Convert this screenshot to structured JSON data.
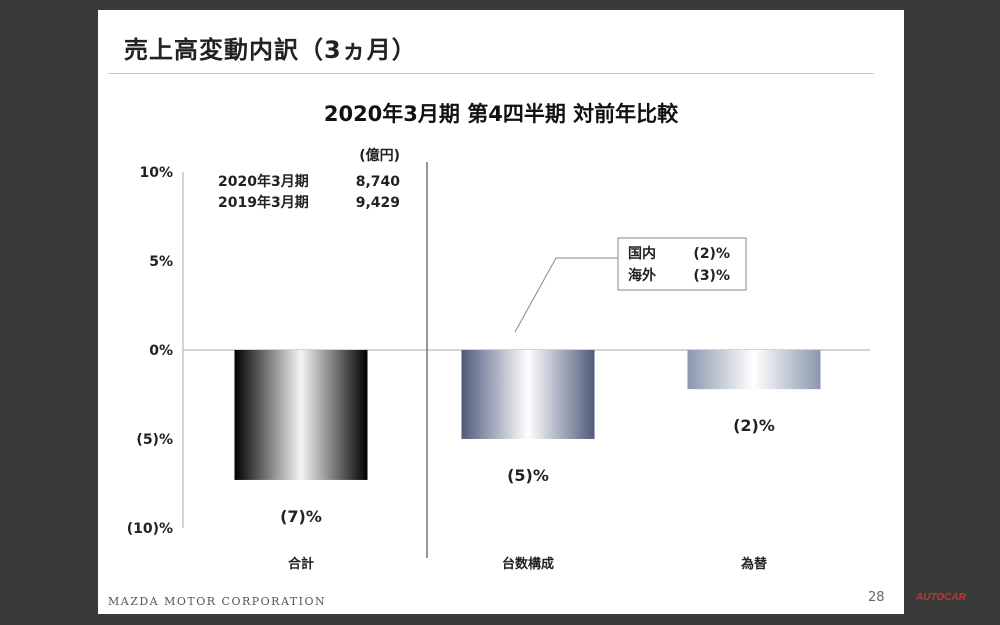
{
  "slide": {
    "title": "売上高変動内訳（3ヵ月）",
    "footer": "MAZDA MOTOR CORPORATION",
    "page_number": "28"
  },
  "watermark": "AUTOCAR",
  "info_box": {
    "unit": "(億円)",
    "rows": [
      {
        "label": "2020年3月期",
        "value": "8,740"
      },
      {
        "label": "2019年3月期",
        "value": "9,429"
      }
    ]
  },
  "callout": {
    "rows": [
      {
        "label": "国内",
        "value": "(2)%"
      },
      {
        "label": "海外",
        "value": "(3)%"
      }
    ]
  },
  "chart_data": {
    "type": "bar",
    "title": "2020年3月期 第4四半期 対前年比較",
    "categories": [
      "合計",
      "台数構成",
      "為替"
    ],
    "values": [
      -7.3,
      -5.0,
      -2.2
    ],
    "data_labels": [
      "(7)%",
      "(5)%",
      "(2)%"
    ],
    "ylim": [
      -10,
      10
    ],
    "y_ticks": [
      10,
      5,
      0,
      -5,
      -10
    ],
    "y_tick_labels": [
      "10%",
      "5%",
      "0%",
      "(5)%",
      "(10)%"
    ],
    "grid": false,
    "bar_styles": [
      "black-gradient",
      "navy-gradient",
      "gray-blue-gradient"
    ]
  }
}
